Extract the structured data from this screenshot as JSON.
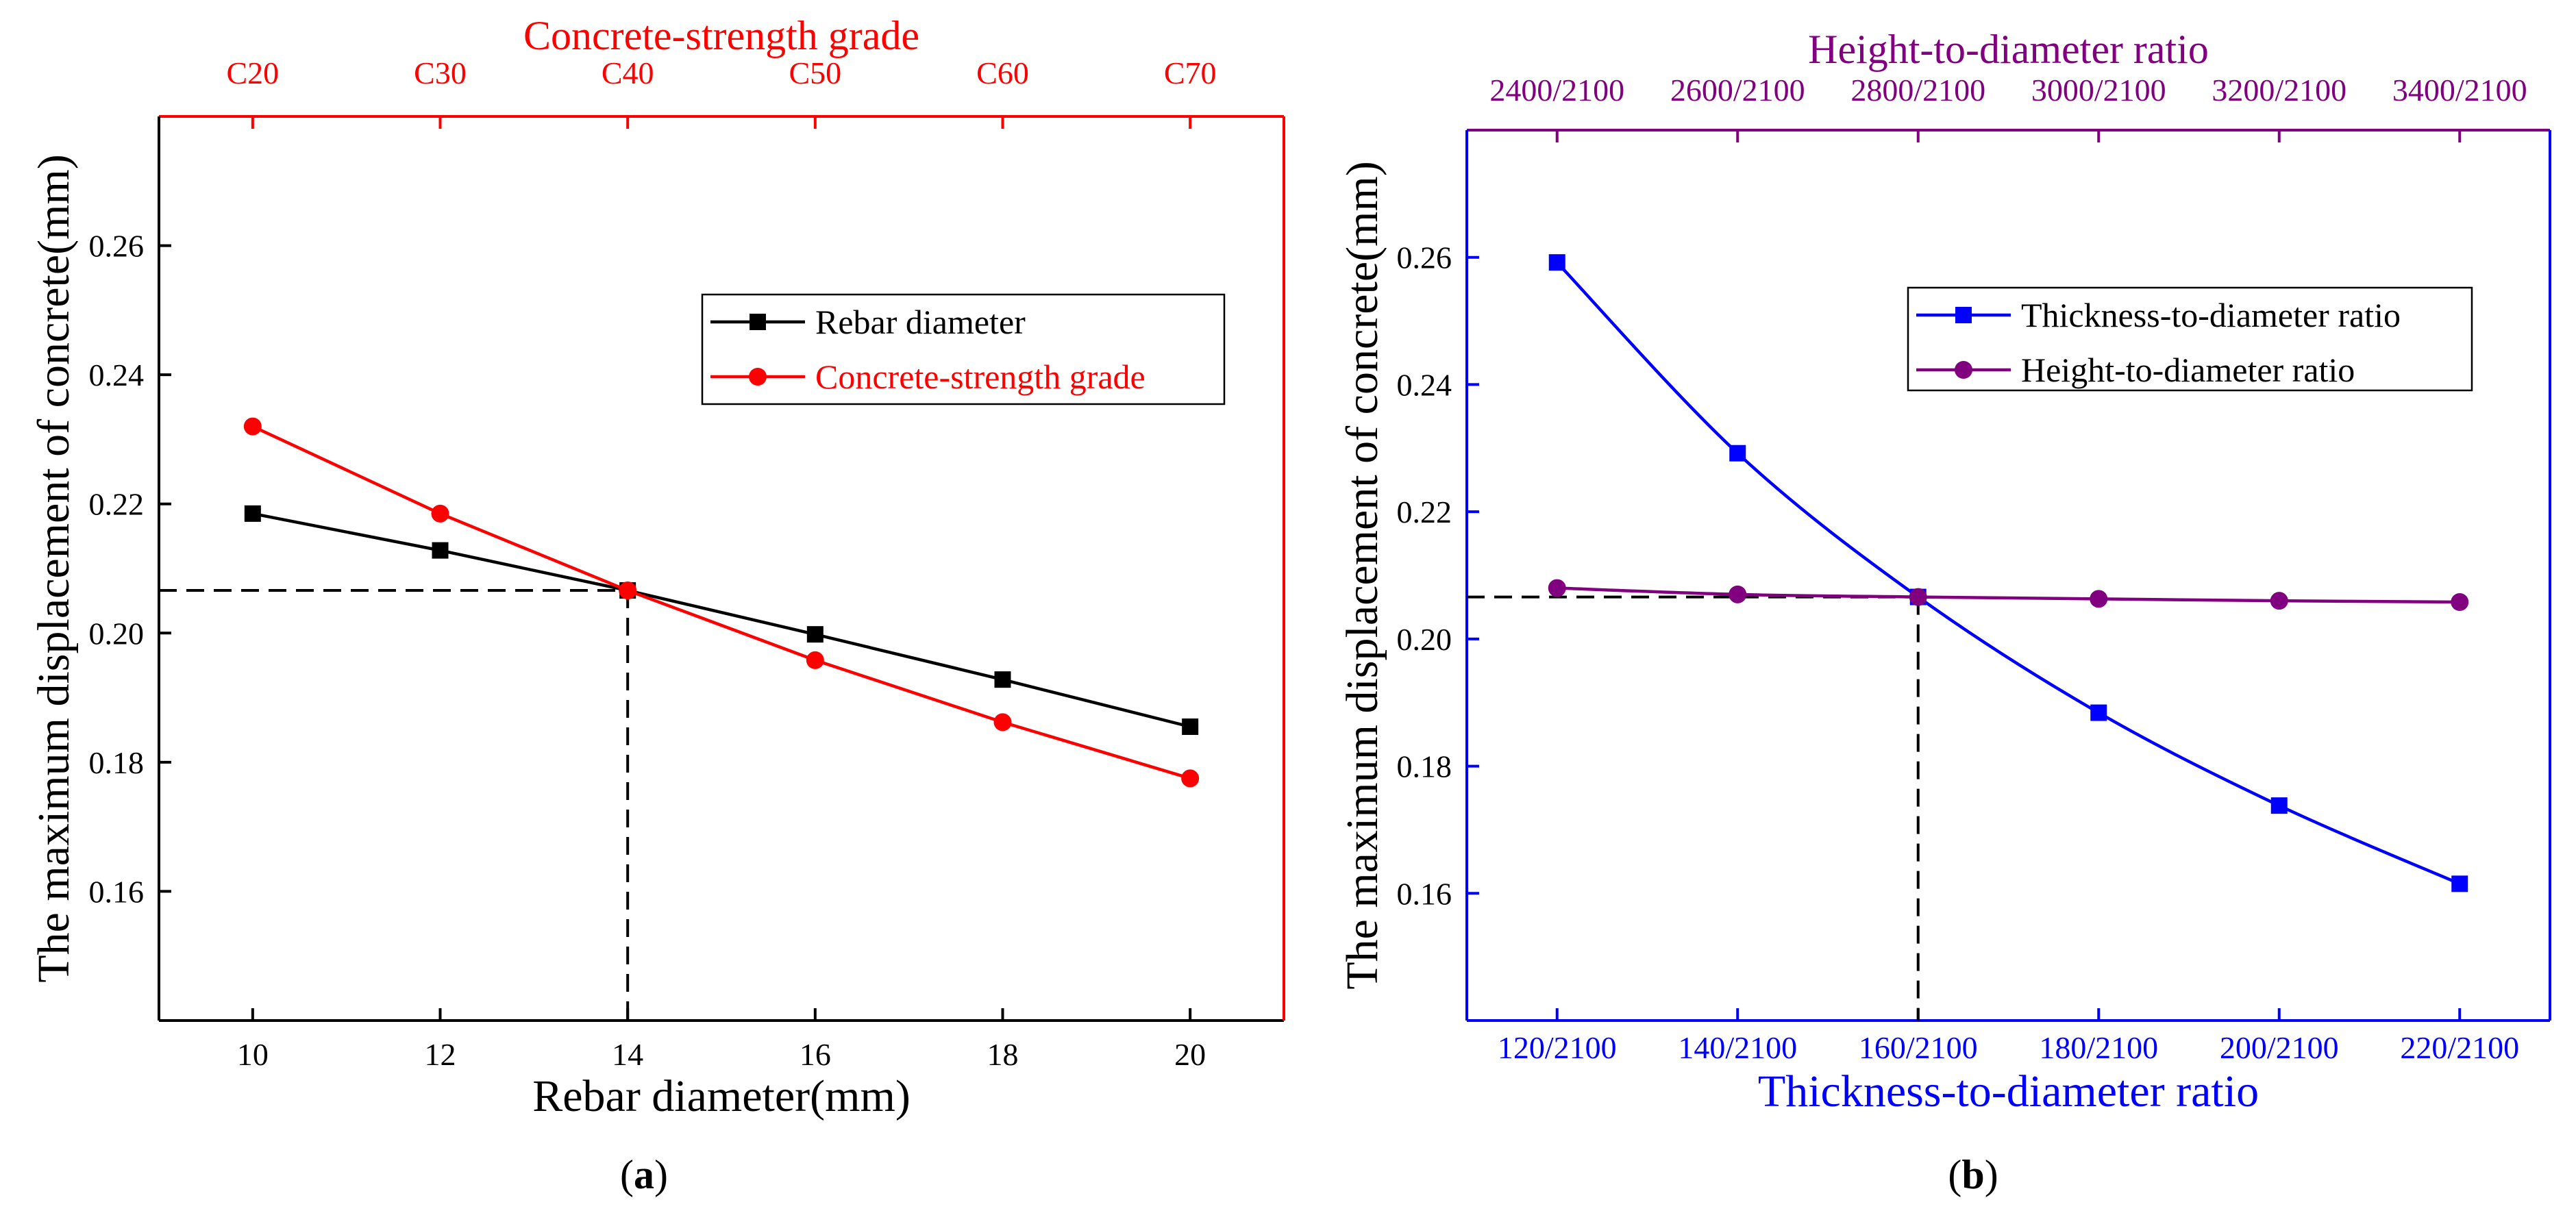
{
  "chart_data": [
    {
      "type": "line",
      "caption": {
        "prefix": "(",
        "label": "a",
        "suffix": ")"
      },
      "ylabel": "The maximum displacement of concrete(mm)",
      "ylim": [
        0.14,
        0.28
      ],
      "y_ticks": [
        0.16,
        0.18,
        0.2,
        0.22,
        0.24,
        0.26
      ],
      "x_bottom": {
        "label": "Rebar diameter(mm)",
        "color": "#000000",
        "lim": [
          9,
          21
        ],
        "ticks": [
          10,
          12,
          14,
          16,
          18,
          20
        ],
        "tick_labels": [
          "10",
          "12",
          "14",
          "16",
          "18",
          "20"
        ]
      },
      "x_top": {
        "label": "Concrete-strength grade",
        "color": "#ff0000",
        "tick_labels": [
          "C20",
          "C30",
          "C40",
          "C50",
          "C60",
          "C70"
        ]
      },
      "series": [
        {
          "name": "Rebar diameter",
          "color": "#000000",
          "marker": "square",
          "x": [
            10,
            12,
            14,
            16,
            18,
            20
          ],
          "values": [
            0.2185,
            0.2128,
            0.2066,
            0.1998,
            0.1928,
            0.1855
          ]
        },
        {
          "name": "Concrete-strength grade",
          "color": "#ff0000",
          "marker": "circle",
          "x": [
            10,
            12,
            14,
            16,
            18,
            20
          ],
          "values": [
            0.232,
            0.2185,
            0.2066,
            0.1958,
            0.1862,
            0.1775
          ]
        }
      ],
      "reference": {
        "x": 14,
        "y": 0.2066
      },
      "legend": "top-right"
    },
    {
      "type": "line",
      "caption": {
        "prefix": "(",
        "label": "b",
        "suffix": ")"
      },
      "ylabel": "The maximum displacement of concrete(mm)",
      "ylim": [
        0.14,
        0.28
      ],
      "y_ticks": [
        0.16,
        0.18,
        0.2,
        0.22,
        0.24,
        0.26
      ],
      "x_bottom": {
        "label": "Thickness-to-diameter ratio",
        "color": "#0000ff",
        "lim": [
          0.5,
          6.5
        ],
        "ticks": [
          1,
          2,
          3,
          4,
          5,
          6
        ],
        "tick_labels": [
          "120/2100",
          "140/2100",
          "160/2100",
          "180/2100",
          "200/2100",
          "220/2100"
        ]
      },
      "x_top": {
        "label": "Height-to-diameter ratio",
        "color": "#800080",
        "tick_labels": [
          "2400/2100",
          "2600/2100",
          "2800/2100",
          "3000/2100",
          "3200/2100",
          "3400/2100"
        ]
      },
      "series": [
        {
          "name": "Thickness-to-diameter ratio",
          "color": "#0000ff",
          "marker": "square",
          "smooth": true,
          "x": [
            1,
            2,
            3,
            4,
            5,
            6
          ],
          "values": [
            0.2592,
            0.2292,
            0.2066,
            0.1884,
            0.1738,
            0.1615
          ]
        },
        {
          "name": "Height-to-diameter ratio",
          "color": "#800080",
          "marker": "circle",
          "smooth": true,
          "x": [
            1,
            2,
            3,
            4,
            5,
            6
          ],
          "values": [
            0.208,
            0.207,
            0.2066,
            0.2063,
            0.206,
            0.2058
          ]
        }
      ],
      "reference": {
        "x": 3,
        "y": 0.2066
      },
      "legend": "top-right"
    }
  ]
}
